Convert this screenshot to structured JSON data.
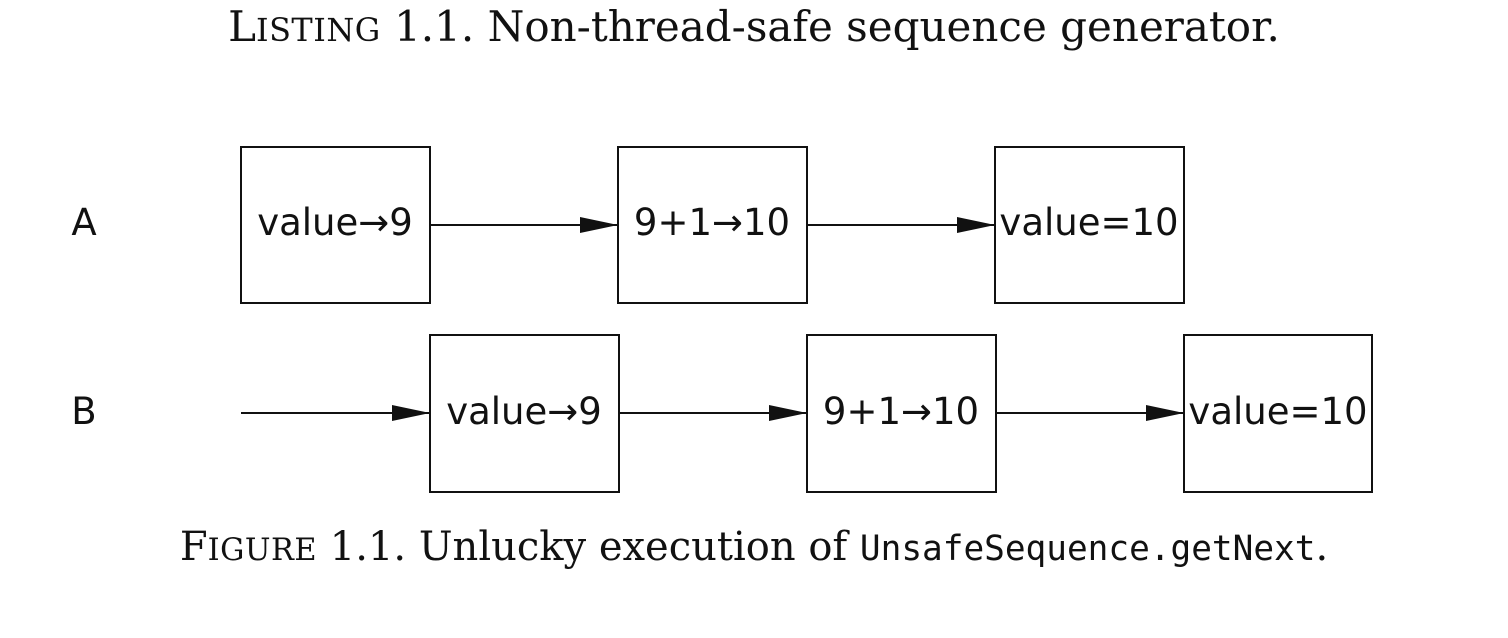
{
  "listing_caption": {
    "label_initial": "L",
    "label_rest": "ISTING",
    "number": " 1.1.",
    "text": " Non-thread-safe sequence generator."
  },
  "figure_caption": {
    "label_initial": "F",
    "label_rest": "IGURE",
    "number": " 1.1.",
    "text_before": " Unlucky execution of ",
    "code": "UnsafeSequence.getNext",
    "text_after": "."
  },
  "diagram": {
    "threads": [
      {
        "label": "A",
        "steps": [
          "value→9",
          "9+1→10",
          "value=10"
        ]
      },
      {
        "label": "B",
        "steps": [
          "value→9",
          "9+1→10",
          "value=10"
        ]
      }
    ]
  }
}
